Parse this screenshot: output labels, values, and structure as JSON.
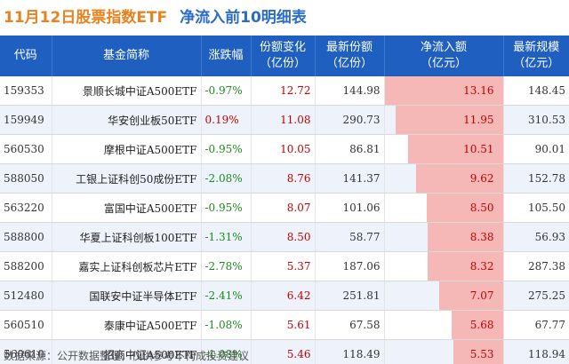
{
  "title": {
    "date": "11月12日股票指数ETF",
    "main": "净流入前10明细表"
  },
  "footer": "数据来源：公开数据整理，仅供参考不构成投资建议",
  "colors": {
    "header_bg": "#1f5fbf",
    "bar": "#f6b7b7",
    "positive": "#c40000",
    "negative": "#1d8a1d",
    "title_date": "#e8821e",
    "title_main": "#2a6cc8"
  },
  "chart_data": {
    "type": "table",
    "headers": [
      "代码",
      "基金简称",
      "涨跌幅",
      "份额变化\n（亿份）",
      "最新份额\n（亿份）",
      "净流入额\n（亿元）",
      "最新规模\n（亿元）"
    ],
    "rows": [
      {
        "code": "159353",
        "name": "景顺长城中证A500ETF",
        "change": "-0.97%",
        "share_change": "12.72",
        "latest_share": "144.98",
        "inflow": "13.16",
        "scale": "148.45"
      },
      {
        "code": "159949",
        "name": "华安创业板50ETF",
        "change": "0.19%",
        "share_change": "11.08",
        "latest_share": "290.73",
        "inflow": "11.95",
        "scale": "310.53"
      },
      {
        "code": "560530",
        "name": "摩根中证A500ETF",
        "change": "-0.95%",
        "share_change": "10.05",
        "latest_share": "86.81",
        "inflow": "10.51",
        "scale": "90.01"
      },
      {
        "code": "588050",
        "name": "工银上证科创50成份ETF",
        "change": "-2.08%",
        "share_change": "8.76",
        "latest_share": "141.37",
        "inflow": "9.62",
        "scale": "152.78"
      },
      {
        "code": "563220",
        "name": "富国中证A500ETF",
        "change": "-0.95%",
        "share_change": "8.07",
        "latest_share": "101.06",
        "inflow": "8.50",
        "scale": "105.50"
      },
      {
        "code": "588800",
        "name": "华夏上证科创板100ETF",
        "change": "-1.31%",
        "share_change": "8.50",
        "latest_share": "58.77",
        "inflow": "8.38",
        "scale": "56.93"
      },
      {
        "code": "588200",
        "name": "嘉实上证科创板芯片ETF",
        "change": "-2.78%",
        "share_change": "5.37",
        "latest_share": "187.06",
        "inflow": "8.32",
        "scale": "287.38"
      },
      {
        "code": "512480",
        "name": "国联安中证半导体ETF",
        "change": "-2.41%",
        "share_change": "6.42",
        "latest_share": "251.81",
        "inflow": "7.07",
        "scale": "275.25"
      },
      {
        "code": "560510",
        "name": "泰康中证A500ETF",
        "change": "-1.08%",
        "share_change": "5.61",
        "latest_share": "67.58",
        "inflow": "5.68",
        "scale": "67.77"
      },
      {
        "code": "560610",
        "name": "招商中证A500ETF",
        "change": "-1.08%",
        "share_change": "5.46",
        "latest_share": "118.49",
        "inflow": "5.53",
        "scale": "118.94"
      }
    ]
  }
}
